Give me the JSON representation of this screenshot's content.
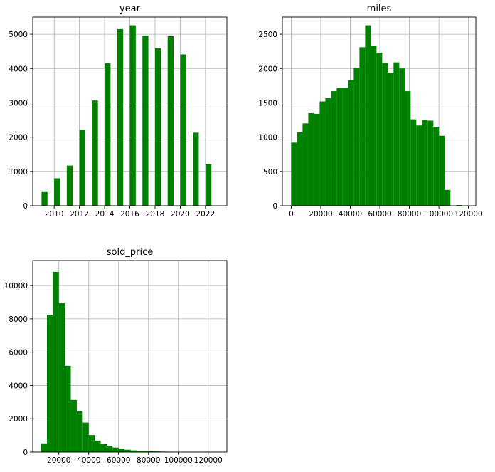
{
  "chart_data": [
    {
      "type": "bar",
      "title": "year",
      "xlabel": "",
      "ylabel": "",
      "xlim": [
        2008.3,
        2023.7
      ],
      "ylim": [
        0,
        5500
      ],
      "x_ticks": [
        2010,
        2012,
        2014,
        2016,
        2018,
        2020,
        2022
      ],
      "y_ticks": [
        0,
        1000,
        2000,
        3000,
        4000,
        5000
      ],
      "grid": true,
      "color": "#008000",
      "bin_width": 0.47,
      "bins": [
        {
          "x": 2009,
          "value": 420
        },
        {
          "x": 2010,
          "value": 800
        },
        {
          "x": 2011,
          "value": 1170
        },
        {
          "x": 2012,
          "value": 2210
        },
        {
          "x": 2013,
          "value": 3070
        },
        {
          "x": 2014,
          "value": 4150
        },
        {
          "x": 2015,
          "value": 5150
        },
        {
          "x": 2016,
          "value": 5260
        },
        {
          "x": 2017,
          "value": 4960
        },
        {
          "x": 2018,
          "value": 4590
        },
        {
          "x": 2019,
          "value": 4940
        },
        {
          "x": 2020,
          "value": 4410
        },
        {
          "x": 2021,
          "value": 2130
        },
        {
          "x": 2022,
          "value": 1210
        }
      ]
    },
    {
      "type": "bar",
      "title": "miles",
      "xlabel": "",
      "ylabel": "",
      "xlim": [
        -6000,
        125000
      ],
      "ylim": [
        0,
        2750
      ],
      "x_ticks": [
        0,
        20000,
        40000,
        60000,
        80000,
        100000,
        120000
      ],
      "y_ticks": [
        0,
        500,
        1000,
        1500,
        2000,
        2500
      ],
      "grid": true,
      "color": "#008000",
      "bin_width": 3850,
      "bins": [
        {
          "x": 0,
          "value": 920
        },
        {
          "x": 3850,
          "value": 1070
        },
        {
          "x": 7700,
          "value": 1200
        },
        {
          "x": 11550,
          "value": 1350
        },
        {
          "x": 15400,
          "value": 1340
        },
        {
          "x": 19250,
          "value": 1520
        },
        {
          "x": 23100,
          "value": 1570
        },
        {
          "x": 26950,
          "value": 1670
        },
        {
          "x": 30800,
          "value": 1720
        },
        {
          "x": 34650,
          "value": 1720
        },
        {
          "x": 38500,
          "value": 1830
        },
        {
          "x": 42350,
          "value": 2010
        },
        {
          "x": 46200,
          "value": 2310
        },
        {
          "x": 50050,
          "value": 2630
        },
        {
          "x": 53900,
          "value": 2330
        },
        {
          "x": 57750,
          "value": 2230
        },
        {
          "x": 61600,
          "value": 2080
        },
        {
          "x": 65450,
          "value": 1940
        },
        {
          "x": 69300,
          "value": 2090
        },
        {
          "x": 73150,
          "value": 2000
        },
        {
          "x": 77000,
          "value": 1670
        },
        {
          "x": 80850,
          "value": 1260
        },
        {
          "x": 84700,
          "value": 1170
        },
        {
          "x": 88550,
          "value": 1250
        },
        {
          "x": 92400,
          "value": 1240
        },
        {
          "x": 96250,
          "value": 1150
        },
        {
          "x": 100100,
          "value": 1020
        },
        {
          "x": 103950,
          "value": 230
        },
        {
          "x": 107800,
          "value": 0
        },
        {
          "x": 111650,
          "value": 10
        },
        {
          "x": 115500,
          "value": 0
        }
      ]
    },
    {
      "type": "bar",
      "title": "sold_price",
      "xlabel": "",
      "ylabel": "",
      "xlim": [
        2500,
        132500
      ],
      "ylim": [
        0,
        11500
      ],
      "x_ticks": [
        20000,
        40000,
        60000,
        80000,
        100000,
        120000
      ],
      "y_ticks": [
        0,
        2000,
        4000,
        6000,
        8000,
        10000
      ],
      "grid": true,
      "color": "#008000",
      "bin_width": 4000,
      "bins": [
        {
          "x": 8000,
          "value": 520
        },
        {
          "x": 12000,
          "value": 8250
        },
        {
          "x": 16000,
          "value": 10820
        },
        {
          "x": 20000,
          "value": 8950
        },
        {
          "x": 24000,
          "value": 5180
        },
        {
          "x": 28000,
          "value": 3130
        },
        {
          "x": 32000,
          "value": 2450
        },
        {
          "x": 36000,
          "value": 1770
        },
        {
          "x": 40000,
          "value": 1020
        },
        {
          "x": 44000,
          "value": 690
        },
        {
          "x": 48000,
          "value": 480
        },
        {
          "x": 52000,
          "value": 380
        },
        {
          "x": 56000,
          "value": 270
        },
        {
          "x": 60000,
          "value": 190
        },
        {
          "x": 64000,
          "value": 140
        },
        {
          "x": 68000,
          "value": 100
        },
        {
          "x": 72000,
          "value": 80
        },
        {
          "x": 76000,
          "value": 60
        },
        {
          "x": 80000,
          "value": 50
        },
        {
          "x": 84000,
          "value": 40
        },
        {
          "x": 88000,
          "value": 30
        },
        {
          "x": 92000,
          "value": 25
        },
        {
          "x": 96000,
          "value": 20
        },
        {
          "x": 100000,
          "value": 15
        },
        {
          "x": 104000,
          "value": 10
        },
        {
          "x": 108000,
          "value": 10
        },
        {
          "x": 112000,
          "value": 5
        },
        {
          "x": 116000,
          "value": 5
        },
        {
          "x": 120000,
          "value": 5
        },
        {
          "x": 124000,
          "value": 5
        }
      ]
    }
  ]
}
